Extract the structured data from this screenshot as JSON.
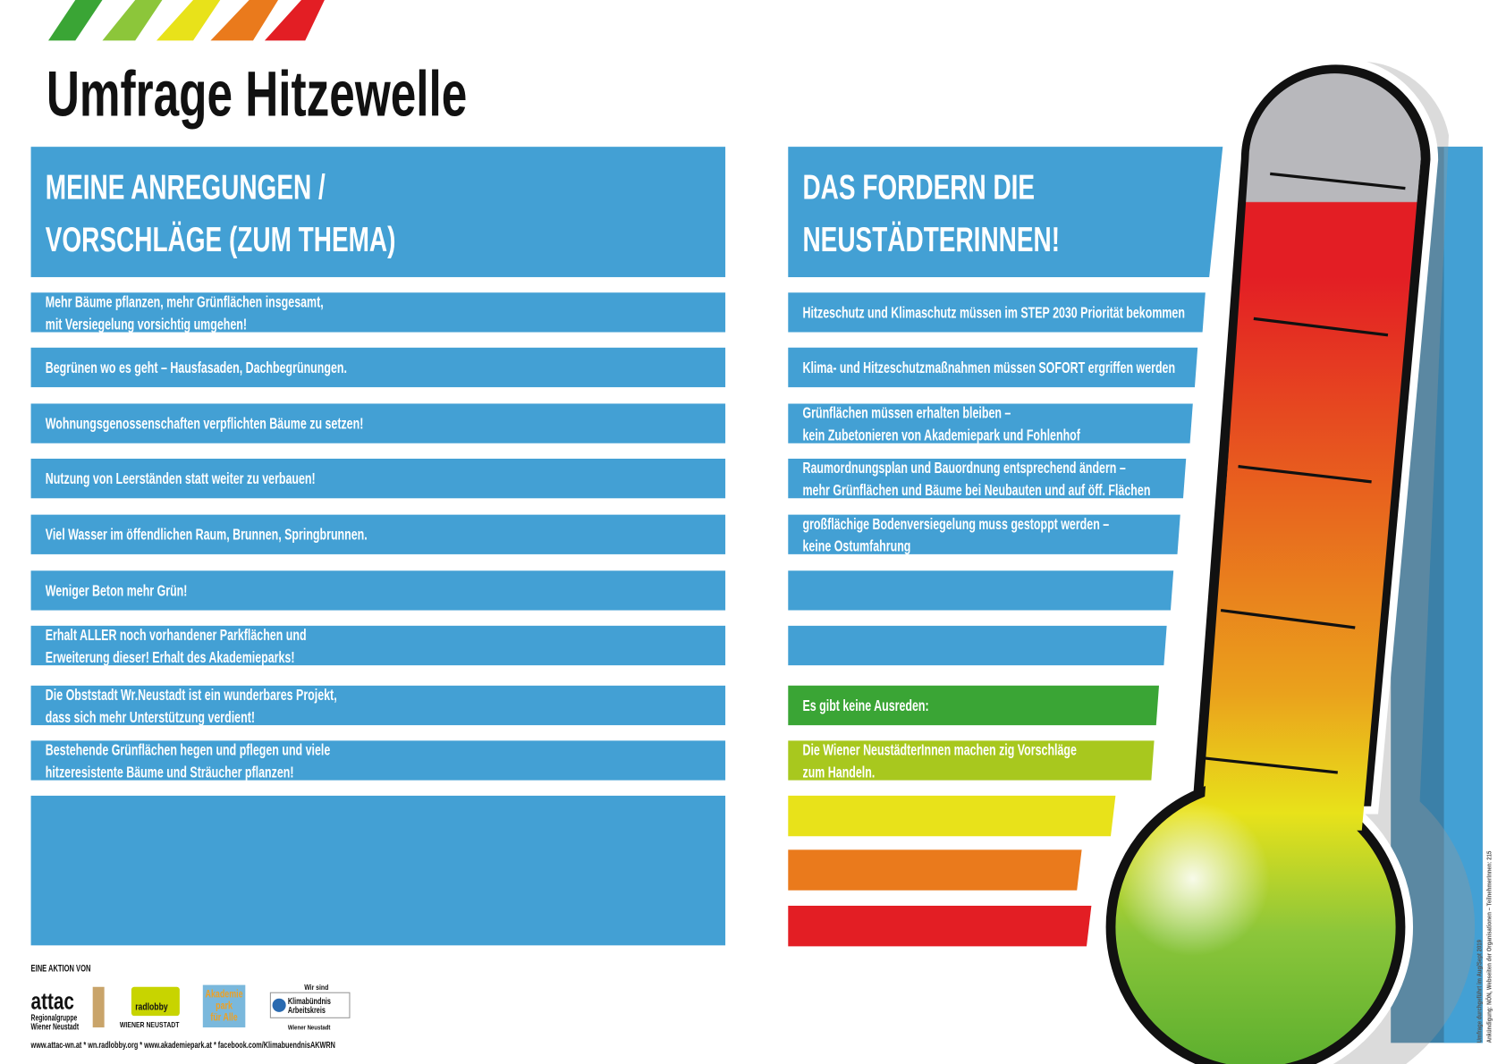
{
  "header": {
    "title": "Umfrage Hitzewelle"
  },
  "left": {
    "heading": [
      "MEINE ANREGUNGEN /",
      "VORSCHLÄGE (ZUM THEMA)"
    ],
    "items": [
      [
        "Mehr Bäume pflanzen, mehr Grünflächen insgesamt,",
        "mit Versiegelung vorsichtig umgehen!"
      ],
      [
        "Begrünen wo es geht – Hausfasaden,  Dachbegrünungen."
      ],
      [
        "Wohnungsgenossenschaften verpflichten Bäume zu setzen!"
      ],
      [
        "Nutzung von Leerständen statt weiter zu verbauen!"
      ],
      [
        "Viel Wasser im öffendlichen Raum, Brunnen, Springbrunnen."
      ],
      [
        "Weniger Beton mehr Grün!"
      ],
      [
        "Erhalt ALLER noch vorhandener Parkflächen und",
        "Erweiterung dieser! Erhalt des Akademieparks!"
      ],
      [
        "Die Obststadt Wr.Neustadt ist ein wunderbares Projekt,",
        "dass sich mehr Unterstützung verdient!"
      ],
      [
        "Bestehende Grünflächen hegen und pflegen und viele",
        "hitzeresistente Bäume und Sträucher pflanzen!"
      ]
    ]
  },
  "right": {
    "heading": [
      "DAS FORDERN DIE",
      "NEUSTÄDTERINNEN!"
    ],
    "items": [
      [
        "Hitzeschutz und Klimaschutz müssen im STEP 2030 Priorität bekommen"
      ],
      [
        "Klima- und Hitzeschutzmaßnahmen müssen SOFORT ergriffen werden"
      ],
      [
        "Grünflächen müssen erhalten bleiben –",
        "kein Zubetonieren von Akademiepark und Fohlenhof"
      ],
      [
        "Raumordnungsplan und Bauordnung entsprechend ändern –",
        "mehr Grünflächen und Bäume bei Neubauten und auf öff. Flächen"
      ],
      [
        "großflächige Bodenversiegelung muss gestoppt werden –",
        "keine Ostumfahrung"
      ]
    ],
    "closing": [
      [
        "Es gibt keine Ausreden:"
      ],
      [
        "Die Wiener NeustädterInnen machen zig Vorschläge",
        "zum Handeln."
      ]
    ]
  },
  "footer": {
    "action": "EINE AKTION VON",
    "logos": {
      "attac": "attac",
      "attac_sub": [
        "Regionalgruppe",
        "Wiener Neustadt"
      ],
      "radlobby": "radlobby",
      "radlobby_sub": "WIENER NEUSTADT",
      "akademie": [
        "Akademie",
        "park",
        "für Alle"
      ],
      "klima_top": "Wir sind",
      "klima": [
        "Klimabündnis",
        "Arbeitskreis"
      ],
      "klima_sub": "Wiener Neustadt"
    },
    "links": "www.attac-wn.at  * wn.radlobby.org * www.akademiepark.at * facebook.com/KlimabuendnisAKWRN"
  },
  "side_note": [
    "Umfrage durchgeführt im Aug/Sept 2019",
    "Ankündigung: NÖN, Webseiten der Organisationen – TeilnehmerInnen: 215"
  ]
}
